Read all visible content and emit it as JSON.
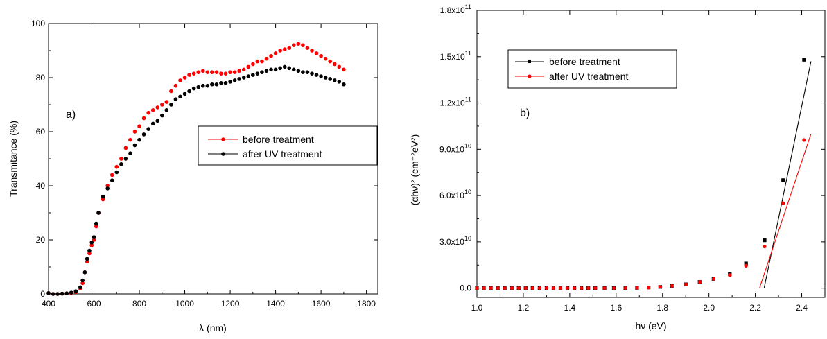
{
  "chart_data": [
    {
      "type": "scatter",
      "panel_label": "a)",
      "xlabel": "λ (nm)",
      "ylabel": "Transmitance (%)",
      "xlim": [
        400,
        1850
      ],
      "ylim": [
        0,
        100
      ],
      "x_ticks": [
        400,
        600,
        800,
        1000,
        1200,
        1400,
        1600,
        1800
      ],
      "x_tick_labels": [
        "400",
        "600",
        "800",
        "1000",
        "1200",
        "1400",
        "1600",
        "1800"
      ],
      "y_ticks": [
        0,
        20,
        40,
        60,
        80,
        100
      ],
      "y_tick_labels": [
        "0",
        "20",
        "40",
        "60",
        "80",
        "100"
      ],
      "grid": false,
      "legend_position": "center-right",
      "series": [
        {
          "name": "before treatment",
          "color": "#ff0000",
          "x": [
            400,
            420,
            440,
            460,
            480,
            500,
            520,
            540,
            550,
            560,
            570,
            580,
            590,
            600,
            610,
            620,
            640,
            660,
            680,
            700,
            720,
            740,
            760,
            780,
            800,
            820,
            840,
            860,
            880,
            900,
            920,
            940,
            960,
            980,
            1000,
            1020,
            1040,
            1060,
            1080,
            1100,
            1120,
            1140,
            1160,
            1180,
            1200,
            1220,
            1240,
            1260,
            1280,
            1300,
            1320,
            1340,
            1360,
            1380,
            1400,
            1420,
            1440,
            1460,
            1480,
            1500,
            1520,
            1540,
            1560,
            1580,
            1600,
            1620,
            1640,
            1660,
            1680,
            1700
          ],
          "y": [
            0.3,
            0,
            0,
            0.1,
            0.2,
            0.3,
            0.7,
            2,
            4,
            8,
            12,
            15,
            18,
            20,
            25,
            30,
            35,
            40,
            44,
            47,
            50,
            54,
            57,
            60,
            62,
            65,
            67,
            68,
            69,
            70,
            71,
            75,
            77,
            79,
            80,
            81,
            81.5,
            82,
            82.5,
            82,
            82,
            82,
            81.5,
            81.5,
            82,
            82,
            82.5,
            83,
            84,
            85,
            86,
            86,
            87,
            88,
            89,
            90,
            90.5,
            91,
            92,
            92.5,
            92,
            91,
            90,
            89,
            88,
            87,
            86,
            85,
            84,
            83
          ]
        },
        {
          "name": "after UV treatment",
          "color": "#000000",
          "x": [
            400,
            420,
            440,
            460,
            480,
            500,
            520,
            540,
            550,
            560,
            570,
            580,
            590,
            600,
            610,
            620,
            640,
            660,
            680,
            700,
            720,
            740,
            760,
            780,
            800,
            820,
            840,
            860,
            880,
            900,
            920,
            940,
            960,
            980,
            1000,
            1020,
            1040,
            1060,
            1080,
            1100,
            1120,
            1140,
            1160,
            1180,
            1200,
            1220,
            1240,
            1260,
            1280,
            1300,
            1320,
            1340,
            1360,
            1380,
            1400,
            1420,
            1440,
            1460,
            1480,
            1500,
            1520,
            1540,
            1560,
            1580,
            1600,
            1620,
            1640,
            1660,
            1680,
            1700
          ],
          "y": [
            0.3,
            0,
            0,
            0.1,
            0.2,
            0.5,
            1,
            2.5,
            5,
            8,
            13,
            16,
            19,
            21,
            26,
            30,
            36,
            39,
            42,
            45,
            48,
            50,
            52,
            55,
            57,
            59,
            61,
            63,
            64,
            66,
            68,
            70,
            72,
            73,
            74,
            75,
            76,
            76.5,
            77,
            77,
            77.5,
            77.5,
            78,
            78,
            78.5,
            79,
            79.5,
            80,
            80.5,
            81,
            81.5,
            82,
            82.5,
            83,
            83,
            83.5,
            84,
            83.5,
            83,
            82.5,
            82,
            82,
            81.5,
            81,
            80.5,
            80,
            79.5,
            79,
            78.5,
            77.5
          ]
        }
      ]
    },
    {
      "type": "scatter",
      "panel_label": "b)",
      "xlabel": "hν (eV)",
      "ylabel": "(αhν)² (cm⁻²eV²)",
      "xlim": [
        1.0,
        2.5
      ],
      "ylim": [
        -6000000000.0,
        180000000000.0
      ],
      "x_ticks": [
        1.0,
        1.2,
        1.4,
        1.6,
        1.8,
        2.0,
        2.2,
        2.4
      ],
      "x_tick_labels": [
        "1.0",
        "1.2",
        "1.4",
        "1.6",
        "1.8",
        "2.0",
        "2.2",
        "2.4"
      ],
      "y_ticks": [
        0,
        30000000000.0,
        60000000000.0,
        90000000000.0,
        120000000000.0,
        150000000000.0,
        180000000000.0
      ],
      "y_tick_labels": [
        {
          "mant": "0.0",
          "exp": ""
        },
        {
          "mant": "3.0x10",
          "exp": "10"
        },
        {
          "mant": "6.0x10",
          "exp": "10"
        },
        {
          "mant": "9.0x10",
          "exp": "10"
        },
        {
          "mant": "1.2x10",
          "exp": "11"
        },
        {
          "mant": "1.5x10",
          "exp": "11"
        },
        {
          "mant": "1.8x10",
          "exp": "11"
        }
      ],
      "grid": false,
      "legend_position": "top-left",
      "series": [
        {
          "name": "before treatment",
          "color": "#000000",
          "x": [
            1.0,
            1.03,
            1.06,
            1.09,
            1.12,
            1.15,
            1.18,
            1.21,
            1.24,
            1.27,
            1.3,
            1.33,
            1.36,
            1.39,
            1.42,
            1.45,
            1.48,
            1.51,
            1.55,
            1.59,
            1.64,
            1.69,
            1.74,
            1.79,
            1.84,
            1.9,
            1.96,
            2.02,
            2.09,
            2.16,
            2.24,
            2.32,
            2.41
          ],
          "y": [
            0,
            0,
            0,
            0,
            0,
            0,
            0,
            0,
            0,
            0,
            0,
            0,
            0,
            0,
            0,
            0,
            0,
            0,
            0,
            0,
            100000000.0,
            200000000.0,
            400000000.0,
            800000000.0,
            1500000000.0,
            2500000000.0,
            4000000000.0,
            6000000000.0,
            9000000000.0,
            16000000000.0,
            31000000000.0,
            70000000000.0,
            148000000000.0
          ],
          "fit_line": {
            "x": [
              2.238,
              2.44
            ],
            "y": [
              0,
              147000000000.0
            ]
          }
        },
        {
          "name": "after UV treatment",
          "color": "#ff0000",
          "x": [
            1.0,
            1.03,
            1.06,
            1.09,
            1.12,
            1.15,
            1.18,
            1.21,
            1.24,
            1.27,
            1.3,
            1.33,
            1.36,
            1.39,
            1.42,
            1.45,
            1.48,
            1.51,
            1.55,
            1.59,
            1.64,
            1.69,
            1.74,
            1.79,
            1.84,
            1.9,
            1.96,
            2.02,
            2.09,
            2.16,
            2.24,
            2.32,
            2.41
          ],
          "y": [
            0,
            0,
            0,
            0,
            0,
            0,
            0,
            0,
            0,
            0,
            0,
            0,
            0,
            0,
            0,
            0,
            0,
            0,
            0,
            0,
            100000000.0,
            200000000.0,
            400000000.0,
            800000000.0,
            1500000000.0,
            2500000000.0,
            4000000000.0,
            6000000000.0,
            8500000000.0,
            14500000000.0,
            27000000000.0,
            55000000000.0,
            96000000000.0
          ],
          "fit_line": {
            "x": [
              2.218,
              2.44
            ],
            "y": [
              0,
              100000000000.0
            ]
          }
        }
      ]
    }
  ]
}
